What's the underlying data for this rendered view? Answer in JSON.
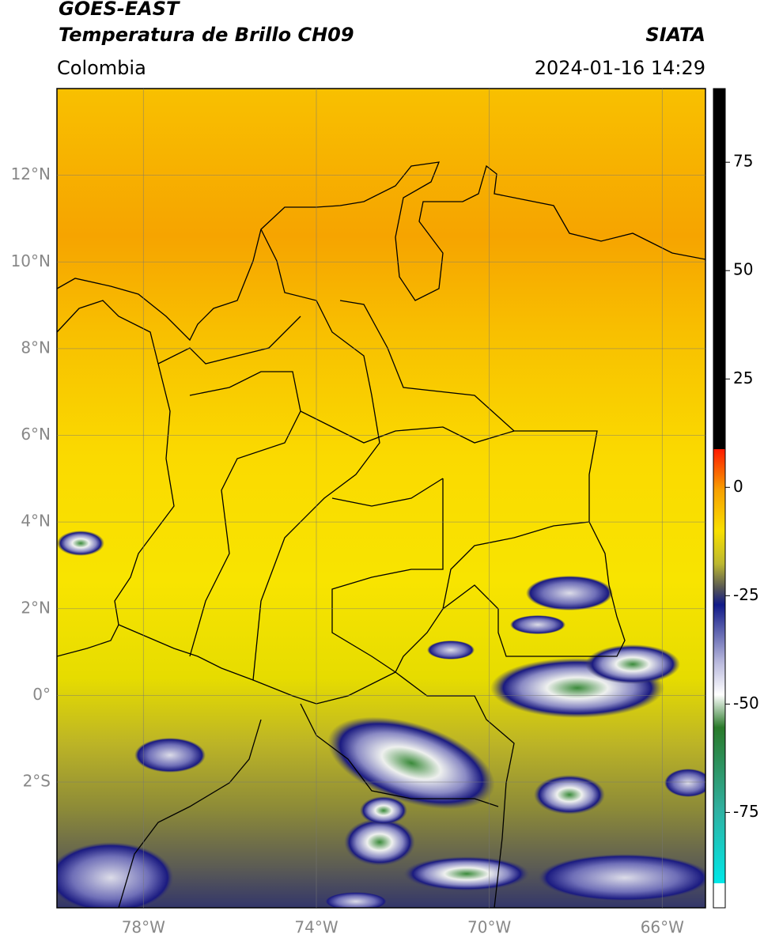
{
  "header": {
    "title": "GOES-EAST",
    "subtitle": "Temperatura de Brillo CH09",
    "region": "Colombia",
    "source": "SIATA",
    "datetime": "2024-01-16 14:29"
  },
  "map": {
    "lon_lim": [
      -80,
      -65
    ],
    "lat_lim": [
      -4.9,
      14
    ],
    "lat_ticks": [
      {
        "value": 12,
        "label": "12°N"
      },
      {
        "value": 10,
        "label": "10°N"
      },
      {
        "value": 8,
        "label": "8°N"
      },
      {
        "value": 6,
        "label": "6°N"
      },
      {
        "value": 4,
        "label": "4°N"
      },
      {
        "value": 2,
        "label": "2°N"
      },
      {
        "value": 0,
        "label": "0°"
      },
      {
        "value": -2,
        "label": "2°S"
      }
    ],
    "lon_ticks": [
      {
        "value": -78,
        "label": "78°W"
      },
      {
        "value": -74,
        "label": "74°W"
      },
      {
        "value": -70,
        "label": "70°W"
      },
      {
        "value": -66,
        "label": "66°W"
      }
    ]
  },
  "colorbar": {
    "lim": [
      -97,
      92
    ],
    "ticks": [
      75,
      50,
      25,
      0,
      -25,
      -50,
      -75
    ]
  }
}
